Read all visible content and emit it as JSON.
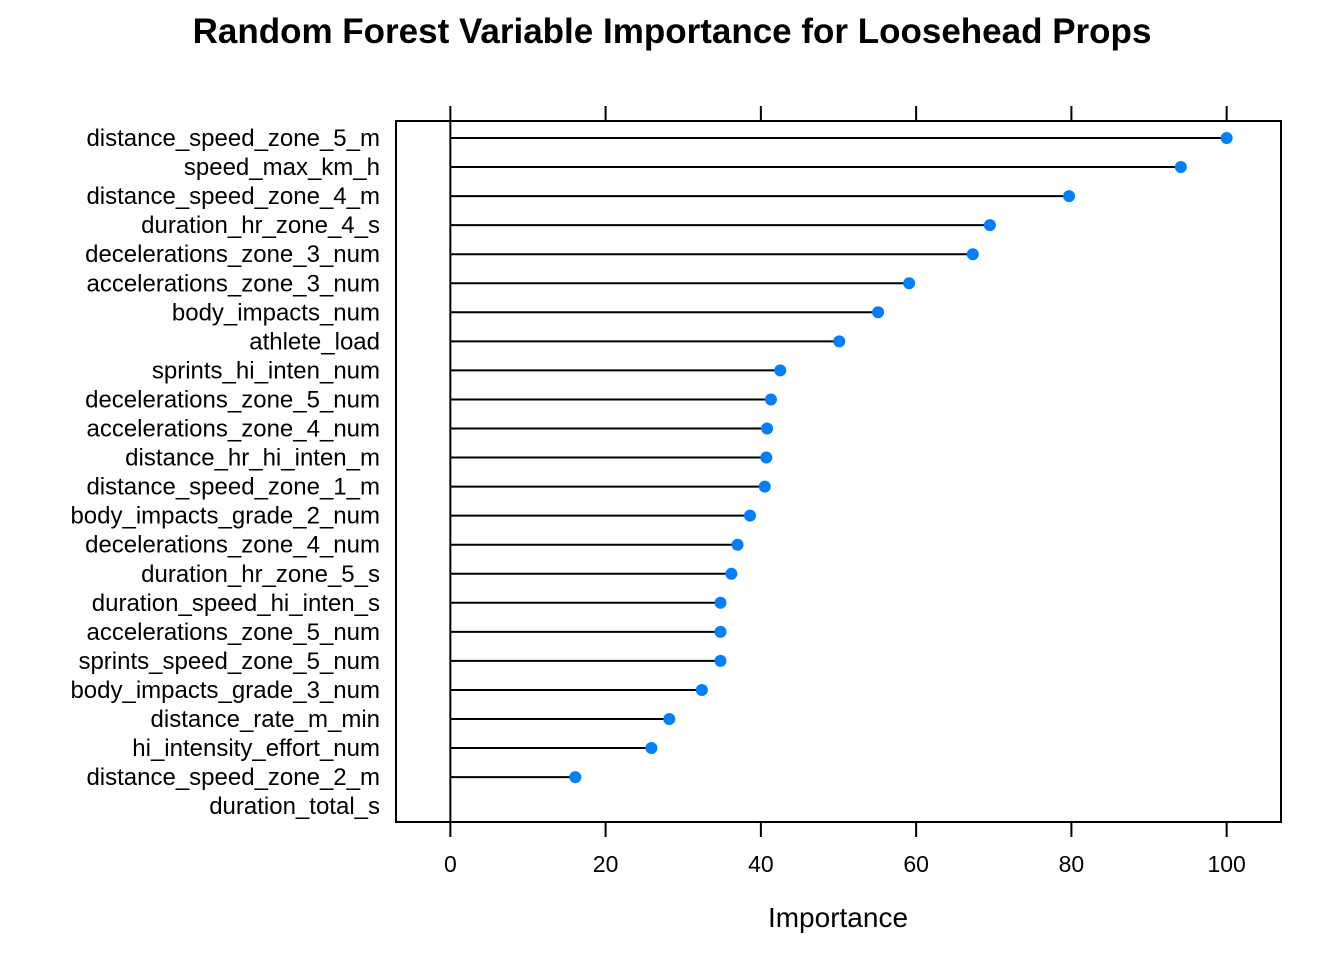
{
  "chart_data": {
    "type": "dot",
    "title": "Random Forest Variable Importance for Loosehead Props",
    "xlabel": "Importance",
    "ylabel": "",
    "xlim": [
      -7,
      107
    ],
    "xticks": [
      0,
      20,
      40,
      60,
      80,
      100
    ],
    "tick_labels": [
      "0",
      "20",
      "40",
      "60",
      "80",
      "100"
    ],
    "grid": false,
    "point_color": "#0080ff",
    "line_color": "#000000",
    "categories": [
      "distance_speed_zone_5_m",
      "speed_max_km_h",
      "distance_speed_zone_4_m",
      "duration_hr_zone_4_s",
      "decelerations_zone_3_num",
      "accelerations_zone_3_num",
      "body_impacts_num",
      "athlete_load",
      "sprints_hi_inten_num",
      "decelerations_zone_5_num",
      "accelerations_zone_4_num",
      "distance_hr_hi_inten_m",
      "distance_speed_zone_1_m",
      "body_impacts_grade_2_num",
      "decelerations_zone_4_num",
      "duration_hr_zone_5_s",
      "duration_speed_hi_inten_s",
      "accelerations_zone_5_num",
      "sprints_speed_zone_5_num",
      "body_impacts_grade_3_num",
      "distance_rate_m_min",
      "hi_intensity_effort_num",
      "distance_speed_zone_2_m",
      "duration_total_s"
    ],
    "values": [
      100.0,
      94.1,
      79.7,
      69.5,
      67.3,
      59.1,
      55.1,
      50.1,
      42.5,
      41.3,
      40.8,
      40.7,
      40.5,
      38.6,
      37.0,
      36.2,
      34.8,
      34.8,
      34.8,
      32.4,
      28.2,
      25.9,
      16.1,
      0.0
    ]
  }
}
